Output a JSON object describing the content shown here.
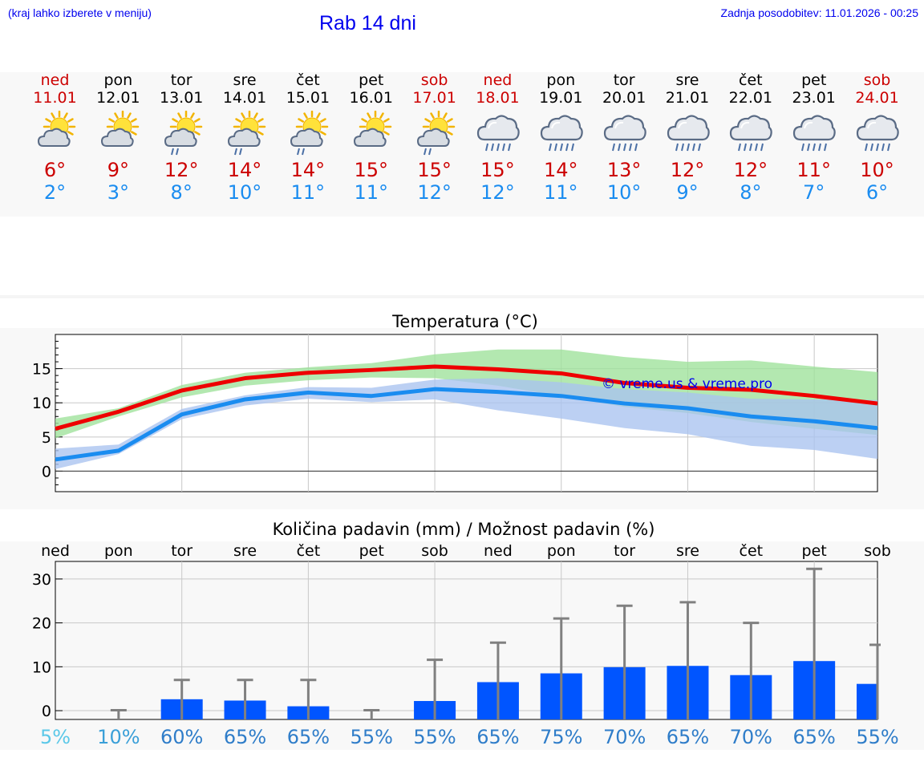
{
  "header": {
    "location_hint": "(kraj lahko izberete v meniju)",
    "title": "Rab 14 dni",
    "last_update": "Zadnja posodobitev: 11.01.2026 - 00:25"
  },
  "days": [
    {
      "name": "ned",
      "date": "11.01",
      "icon": "sun-cloud-icon",
      "max": "6°",
      "min": "2°",
      "weekend": true
    },
    {
      "name": "pon",
      "date": "12.01",
      "icon": "sun-cloud-icon",
      "max": "9°",
      "min": "3°",
      "weekend": false
    },
    {
      "name": "tor",
      "date": "13.01",
      "icon": "sun-cloud-rain-icon",
      "max": "12°",
      "min": "8°",
      "weekend": false
    },
    {
      "name": "sre",
      "date": "14.01",
      "icon": "sun-cloud-rain-icon",
      "max": "14°",
      "min": "10°",
      "weekend": false
    },
    {
      "name": "čet",
      "date": "15.01",
      "icon": "sun-cloud-rain-icon",
      "max": "14°",
      "min": "11°",
      "weekend": false
    },
    {
      "name": "pet",
      "date": "16.01",
      "icon": "sun-cloud-icon",
      "max": "15°",
      "min": "11°",
      "weekend": false
    },
    {
      "name": "sob",
      "date": "17.01",
      "icon": "sun-cloud-rain-icon",
      "max": "15°",
      "min": "12°",
      "weekend": true
    },
    {
      "name": "ned",
      "date": "18.01",
      "icon": "rain-cloud-icon",
      "max": "15°",
      "min": "12°",
      "weekend": true
    },
    {
      "name": "pon",
      "date": "19.01",
      "icon": "rain-cloud-icon",
      "max": "14°",
      "min": "11°",
      "weekend": false
    },
    {
      "name": "tor",
      "date": "20.01",
      "icon": "rain-cloud-icon",
      "max": "13°",
      "min": "10°",
      "weekend": false
    },
    {
      "name": "sre",
      "date": "21.01",
      "icon": "rain-cloud-icon",
      "max": "12°",
      "min": "9°",
      "weekend": false
    },
    {
      "name": "čet",
      "date": "22.01",
      "icon": "rain-cloud-icon",
      "max": "12°",
      "min": "8°",
      "weekend": false
    },
    {
      "name": "pet",
      "date": "23.01",
      "icon": "rain-cloud-icon",
      "max": "11°",
      "min": "7°",
      "weekend": false
    },
    {
      "name": "sob",
      "date": "24.01",
      "icon": "rain-cloud-icon",
      "max": "10°",
      "min": "6°",
      "weekend": true
    }
  ],
  "colors": {
    "weekend": "#cc0000",
    "weekday": "#000000",
    "max": "#cc0000",
    "min": "#1a8cf0",
    "max_line": "#ee0000",
    "max_band": "#9ee29a",
    "min_line": "#1a8cf0",
    "min_band": "#a9c3f0",
    "bar": "#0055ff",
    "error": "#808080",
    "link": "#0000ee"
  },
  "chart_data": [
    {
      "type": "line",
      "title": "Temperatura (°C)",
      "watermark": "© vreme.us & vreme.pro",
      "ylim": [
        -3,
        20
      ],
      "yticks": [
        0,
        5,
        10,
        15
      ],
      "x": [
        0,
        1,
        2,
        3,
        4,
        5,
        6,
        7,
        8,
        9,
        10,
        11,
        12,
        13
      ],
      "series": [
        {
          "name": "max",
          "values": [
            6.2,
            8.7,
            11.8,
            13.6,
            14.4,
            14.8,
            15.3,
            14.9,
            14.3,
            12.9,
            12.2,
            11.9,
            11.0,
            9.9
          ],
          "band_low": [
            4.8,
            8.0,
            10.8,
            12.5,
            13.3,
            13.7,
            13.6,
            12.5,
            11.0,
            9.4,
            8.5,
            7.2,
            6.2,
            5.3
          ],
          "band_high": [
            7.7,
            9.2,
            12.6,
            14.4,
            15.2,
            15.8,
            17.1,
            17.8,
            17.8,
            16.7,
            16.0,
            16.2,
            15.3,
            14.5
          ]
        },
        {
          "name": "min",
          "values": [
            1.7,
            3.0,
            8.3,
            10.5,
            11.5,
            11.0,
            12.0,
            11.6,
            11.0,
            9.9,
            9.2,
            8.0,
            7.3,
            6.3
          ],
          "band_low": [
            0.3,
            2.5,
            7.6,
            9.6,
            10.6,
            10.1,
            10.5,
            8.9,
            7.7,
            6.3,
            5.4,
            3.7,
            3.1,
            1.8
          ],
          "band_high": [
            3.3,
            3.9,
            9.1,
            11.1,
            12.3,
            12.2,
            13.4,
            13.6,
            13.0,
            12.0,
            11.5,
            10.6,
            10.5,
            10.4
          ]
        }
      ]
    },
    {
      "type": "bar",
      "title": "Količina padavin (mm) / Možnost padavin (%)",
      "ylim": [
        -2,
        34
      ],
      "yticks": [
        0,
        10,
        20,
        30
      ],
      "categories": [
        "ned",
        "pon",
        "tor",
        "sre",
        "čet",
        "pet",
        "sob",
        "ned",
        "pon",
        "tor",
        "sre",
        "čet",
        "pet",
        "sob"
      ],
      "values": [
        0,
        0,
        2.6,
        2.3,
        1.0,
        0,
        2.2,
        6.5,
        8.5,
        9.9,
        10.2,
        8.1,
        11.3,
        6.1
      ],
      "error_high": [
        0,
        0.1,
        7.0,
        7.0,
        7.0,
        0.1,
        11.6,
        15.5,
        21.0,
        23.9,
        24.7,
        20.0,
        32.3,
        15.0
      ],
      "chance_pct": [
        "5%",
        "10%",
        "60%",
        "65%",
        "65%",
        "55%",
        "55%",
        "65%",
        "75%",
        "70%",
        "65%",
        "70%",
        "65%",
        "55%"
      ],
      "chance_colors": [
        "#5bc8e8",
        "#3a9fd8",
        "#2f7dc9",
        "#2f7dc9",
        "#2f7dc9",
        "#2f7dc9",
        "#2f7dc9",
        "#2f7dc9",
        "#2f7dc9",
        "#2f7dc9",
        "#2f7dc9",
        "#2f7dc9",
        "#2f7dc9",
        "#2f7dc9"
      ]
    }
  ]
}
